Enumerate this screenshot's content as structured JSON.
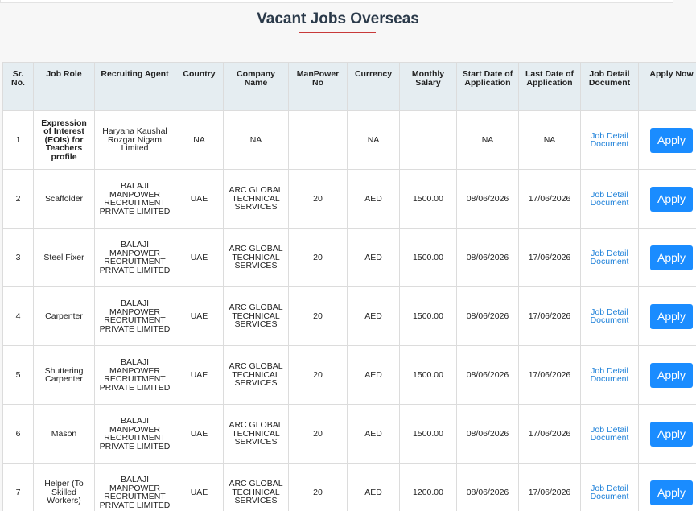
{
  "title": "Vacant Jobs Overseas",
  "table": {
    "headers": [
      "Sr. No.",
      "Job Role",
      "Recruiting Agent",
      "Country",
      "Company Name",
      "ManPower No",
      "Currency",
      "Monthly Salary",
      "Start Date of Application",
      "Last Date of Application",
      "Job Detail Document",
      "Apply Now"
    ],
    "rows": [
      [
        "1",
        "Expression of Interest (EOIs) for Teachers profile",
        "Haryana Kaushal Rozgar Nigam Limited",
        "NA",
        "NA",
        null,
        "NA",
        null,
        "NA",
        "NA",
        "Job Detail Document",
        "Apply"
      ],
      [
        "2",
        "Scaffolder",
        "BALAJI MANPOWER RECRUITMENT PRIVATE LIMITED",
        "UAE",
        "ARC GLOBAL TECHNICAL SERVICES",
        "20",
        "AED",
        "1500.00",
        "08/06/2026",
        "17/06/2026",
        "Job Detail Document",
        "Apply"
      ],
      [
        "3",
        "Steel Fixer",
        "BALAJI MANPOWER RECRUITMENT PRIVATE LIMITED",
        "UAE",
        "ARC GLOBAL TECHNICAL SERVICES",
        "20",
        "AED",
        "1500.00",
        "08/06/2026",
        "17/06/2026",
        "Job Detail Document",
        "Apply"
      ],
      [
        "4",
        "Carpenter",
        "BALAJI MANPOWER RECRUITMENT PRIVATE LIMITED",
        "UAE",
        "ARC GLOBAL TECHNICAL SERVICES",
        "20",
        "AED",
        "1500.00",
        "08/06/2026",
        "17/06/2026",
        "Job Detail Document",
        "Apply"
      ],
      [
        "5",
        "Shuttering Carpenter",
        "BALAJI MANPOWER RECRUITMENT PRIVATE LIMITED",
        "UAE",
        "ARC GLOBAL TECHNICAL SERVICES",
        "20",
        "AED",
        "1500.00",
        "08/06/2026",
        "17/06/2026",
        "Job Detail Document",
        "Apply"
      ],
      [
        "6",
        "Mason",
        "BALAJI MANPOWER RECRUITMENT PRIVATE LIMITED",
        "UAE",
        "ARC GLOBAL TECHNICAL SERVICES",
        "20",
        "AED",
        "1500.00",
        "08/06/2026",
        "17/06/2026",
        "Job Detail Document",
        "Apply"
      ],
      [
        "7",
        "Helper (To Skilled Workers)",
        "BALAJI MANPOWER RECRUITMENT PRIVATE LIMITED",
        "UAE",
        "ARC GLOBAL TECHNICAL SERVICES",
        "20",
        "AED",
        "1200.00",
        "08/06/2026",
        "17/06/2026",
        "Job Detail Document",
        "Apply"
      ]
    ]
  }
}
